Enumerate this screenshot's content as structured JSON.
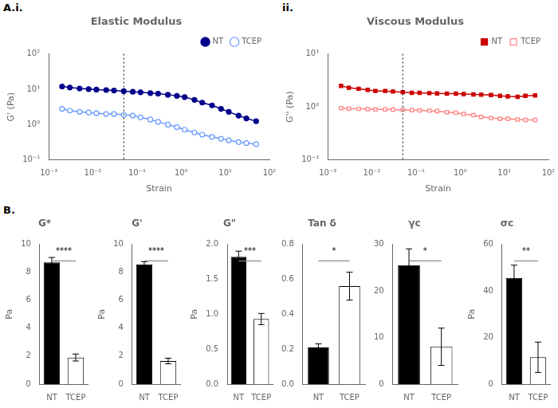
{
  "chart_data": [
    {
      "type": "line",
      "title": "Elastic Modulus",
      "panel_label": "A.i.",
      "x_label": "Strain",
      "y_label": "G' (Pa)",
      "log": true,
      "grid": false,
      "legend": "upper right",
      "x": [
        0.002,
        0.003,
        0.005,
        0.008,
        0.012,
        0.02,
        0.03,
        0.05,
        0.08,
        0.12,
        0.2,
        0.3,
        0.5,
        0.8,
        1.2,
        2.0,
        3.0,
        5.0,
        8.0,
        12.0,
        20.0,
        30.0,
        50.0
      ],
      "series": [
        {
          "name": "NT",
          "color": "#00008B",
          "marker": "circle",
          "line_style": "solid",
          "values": [
            12.0,
            11.2,
            10.5,
            10.1,
            9.8,
            9.5,
            9.2,
            8.8,
            8.5,
            8.2,
            7.8,
            7.5,
            7.0,
            6.5,
            6.0,
            5.0,
            4.2,
            3.5,
            2.8,
            2.3,
            1.8,
            1.5,
            1.25
          ]
        },
        {
          "name": "TCEP",
          "color": "#6699FF",
          "marker": "open circle",
          "line_style": "solid",
          "values": [
            2.8,
            2.5,
            2.3,
            2.2,
            2.1,
            2.0,
            2.0,
            1.9,
            1.8,
            1.6,
            1.4,
            1.2,
            1.0,
            0.85,
            0.72,
            0.6,
            0.52,
            0.45,
            0.4,
            0.36,
            0.32,
            0.3,
            0.28
          ]
        }
      ],
      "vline_x": 0.05,
      "xlim": [
        0.001,
        100
      ],
      "xticks": [
        {
          "value": 0.001,
          "label": "10⁻³"
        },
        {
          "value": 0.01,
          "label": "10⁻²"
        },
        {
          "value": 0.1,
          "label": "10⁻¹"
        },
        {
          "value": 1,
          "label": "10⁰"
        },
        {
          "value": 10,
          "label": "10¹"
        },
        {
          "value": 100,
          "label": "10²"
        }
      ],
      "ylim": [
        0.1,
        100
      ],
      "yticks": [
        {
          "value": 0.1,
          "label": "10⁻¹"
        },
        {
          "value": 1,
          "label": "10⁰"
        },
        {
          "value": 10,
          "label": "10¹"
        },
        {
          "value": 100,
          "label": "10²"
        }
      ]
    },
    {
      "type": "line",
      "title": "Viscous Modulus",
      "panel_label": "ii.",
      "x_label": "Strain",
      "y_label": "G'' (Pa)",
      "log": true,
      "grid": false,
      "legend": "upper right",
      "x": [
        0.002,
        0.003,
        0.005,
        0.008,
        0.012,
        0.02,
        0.03,
        0.05,
        0.08,
        0.12,
        0.2,
        0.3,
        0.5,
        0.8,
        1.2,
        2.0,
        3.0,
        5.0,
        8.0,
        12.0,
        20.0,
        30.0,
        50.0
      ],
      "series": [
        {
          "name": "NT",
          "color": "#CC0000",
          "marker": "square",
          "line_style": "solid",
          "values": [
            2.5,
            2.3,
            2.2,
            2.1,
            2.0,
            2.0,
            1.95,
            1.9,
            1.85,
            1.85,
            1.82,
            1.8,
            1.78,
            1.78,
            1.75,
            1.72,
            1.7,
            1.68,
            1.62,
            1.58,
            1.55,
            1.62,
            1.65
          ]
        },
        {
          "name": "TCEP",
          "color": "#FF8080",
          "marker": "open square",
          "line_style": "solid",
          "values": [
            0.95,
            0.93,
            0.92,
            0.91,
            0.9,
            0.9,
            0.89,
            0.88,
            0.87,
            0.86,
            0.85,
            0.83,
            0.8,
            0.78,
            0.74,
            0.7,
            0.65,
            0.62,
            0.6,
            0.6,
            0.58,
            0.57,
            0.57
          ]
        }
      ],
      "vline_x": 0.05,
      "xlim": [
        0.001,
        100
      ],
      "xticks": [
        {
          "value": 0.001,
          "label": "10⁻³"
        },
        {
          "value": 0.01,
          "label": "10⁻²"
        },
        {
          "value": 0.1,
          "label": "10⁻¹"
        },
        {
          "value": 1,
          "label": "10⁰"
        },
        {
          "value": 10,
          "label": "10¹"
        },
        {
          "value": 100,
          "label": "10²"
        }
      ],
      "ylim": [
        0.1,
        10
      ],
      "yticks": [
        {
          "value": 0.1,
          "label": "10⁻¹"
        },
        {
          "value": 1,
          "label": "10⁰"
        },
        {
          "value": 10,
          "label": "10¹"
        }
      ]
    },
    {
      "type": "bar",
      "title": "G*",
      "panel_label": "B.",
      "y_label": "Pa",
      "grid": false,
      "categories": [
        "NT",
        "TCEP"
      ],
      "values": [
        8.7,
        1.9
      ],
      "errors": [
        0.35,
        0.25
      ],
      "colors": [
        "#000000",
        "#ffffff"
      ],
      "ylim": [
        0,
        10
      ],
      "yticks": [
        0,
        2,
        4,
        6,
        8,
        10
      ],
      "annotation": "****"
    },
    {
      "type": "bar",
      "title": "G'",
      "y_label": "Pa",
      "grid": false,
      "categories": [
        "NT",
        "TCEP"
      ],
      "values": [
        8.55,
        1.65
      ],
      "errors": [
        0.2,
        0.2
      ],
      "colors": [
        "#000000",
        "#ffffff"
      ],
      "ylim": [
        0,
        10
      ],
      "yticks": [
        0,
        2,
        4,
        6,
        8,
        10
      ],
      "annotation": "****"
    },
    {
      "type": "bar",
      "title": "G\"",
      "y_label": "Pa",
      "grid": false,
      "categories": [
        "NT",
        "TCEP"
      ],
      "values": [
        1.82,
        0.93
      ],
      "errors": [
        0.08,
        0.08
      ],
      "colors": [
        "#000000",
        "#ffffff"
      ],
      "ylim": [
        0,
        2.0
      ],
      "yticks": [
        {
          "value": 0,
          "label": "0.0"
        },
        0.5,
        {
          "value": 1,
          "label": "1.0"
        },
        1.5,
        {
          "value": 2,
          "label": "2.0"
        }
      ],
      "annotation": "***"
    },
    {
      "type": "bar",
      "title": "Tan δ",
      "grid": false,
      "categories": [
        "NT",
        "TCEP"
      ],
      "values": [
        0.21,
        0.56
      ],
      "errors": [
        0.02,
        0.08
      ],
      "colors": [
        "#000000",
        "#ffffff"
      ],
      "ylim": [
        0,
        0.8
      ],
      "yticks": [
        {
          "value": 0,
          "label": "0.0"
        },
        0.2,
        0.4,
        0.6,
        0.8
      ],
      "annotation": "*"
    },
    {
      "type": "bar",
      "title": "γc",
      "grid": false,
      "categories": [
        "NT",
        "TCEP"
      ],
      "values": [
        25.5,
        8.0
      ],
      "errors": [
        3.5,
        4.0
      ],
      "colors": [
        "#000000",
        "#ffffff"
      ],
      "ylim": [
        0,
        30
      ],
      "yticks": [
        0,
        10,
        20,
        30
      ],
      "annotation": "*"
    },
    {
      "type": "bar",
      "title": "σc",
      "y_label": "Pa",
      "grid": false,
      "categories": [
        "NT",
        "TCEP"
      ],
      "values": [
        45.5,
        11.5
      ],
      "errors": [
        5.5,
        6.5
      ],
      "colors": [
        "#000000",
        "#ffffff"
      ],
      "ylim": [
        0,
        60
      ],
      "yticks": [
        0,
        20,
        40,
        60
      ],
      "annotation": "**"
    }
  ]
}
